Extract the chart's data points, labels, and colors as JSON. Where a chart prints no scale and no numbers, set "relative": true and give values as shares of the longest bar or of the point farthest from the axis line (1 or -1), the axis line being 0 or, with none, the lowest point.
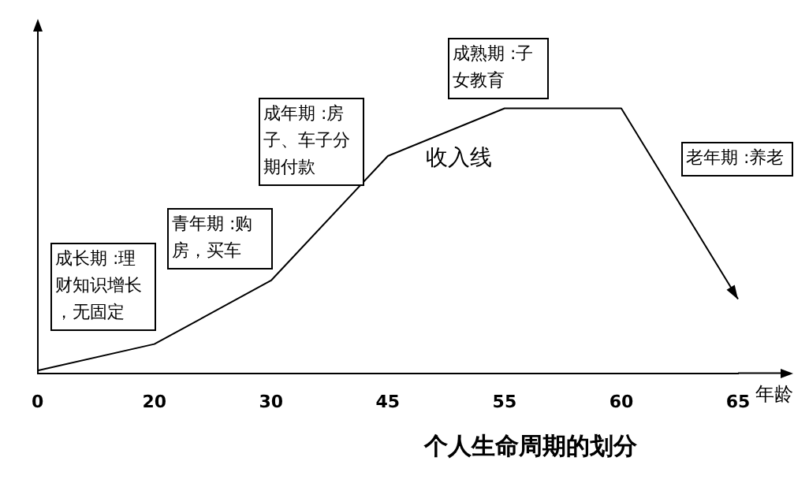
{
  "chart_data": {
    "type": "line",
    "title": "个人生命周期的划分",
    "xlabel": "年龄",
    "categories": [
      "0",
      "20",
      "30",
      "45",
      "55",
      "60",
      "65"
    ],
    "relative": true,
    "series": [
      {
        "name": "收入线",
        "color": "#000000",
        "values": [
          0.01,
          0.11,
          0.35,
          0.82,
          1,
          1,
          0.28
        ]
      }
    ],
    "annotations": [
      "成长期 :理财知识增长，无固定",
      "青年期 :购房，买车",
      "成年期 :房子、车子分期付款",
      "成熟期 :子女教育",
      "老年期 :养老"
    ],
    "grid": false,
    "legend": false,
    "marker": "none",
    "line_style": "solid"
  }
}
